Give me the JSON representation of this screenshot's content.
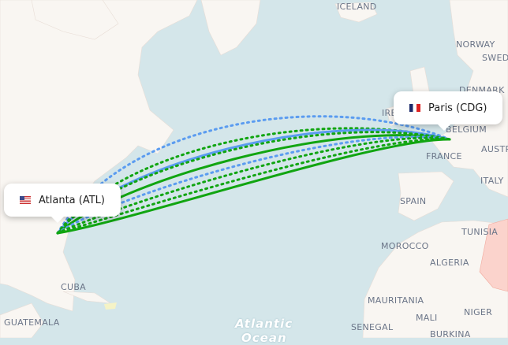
{
  "map": {
    "colors": {
      "ocean": "#d4e6ea",
      "land": "#f9f6f2",
      "direct": "#11a511",
      "connecting": "#5b9cf0",
      "highlight_country": "#fbd3cc"
    },
    "country_labels": [
      "ICELAND",
      "NORWAY",
      "SWED",
      "DENMARK",
      "IRE",
      "BELGIUM",
      "FRANCE",
      "AUSTR",
      "ITALY",
      "SPAIN",
      "TUNISIA",
      "MOROCCO",
      "ALGERIA",
      "MAURITANIA",
      "MALI",
      "NIGER",
      "SENEGAL",
      "BURKINA",
      "CUBA",
      "GUATEMALA"
    ],
    "ocean_labels": [
      "Atlantic",
      "Ocean"
    ]
  },
  "origin": {
    "label": "Atlanta (ATL)",
    "flag": "us-flag-icon"
  },
  "destination": {
    "label": "Paris (CDG)",
    "flag": "fr-flag-icon"
  }
}
